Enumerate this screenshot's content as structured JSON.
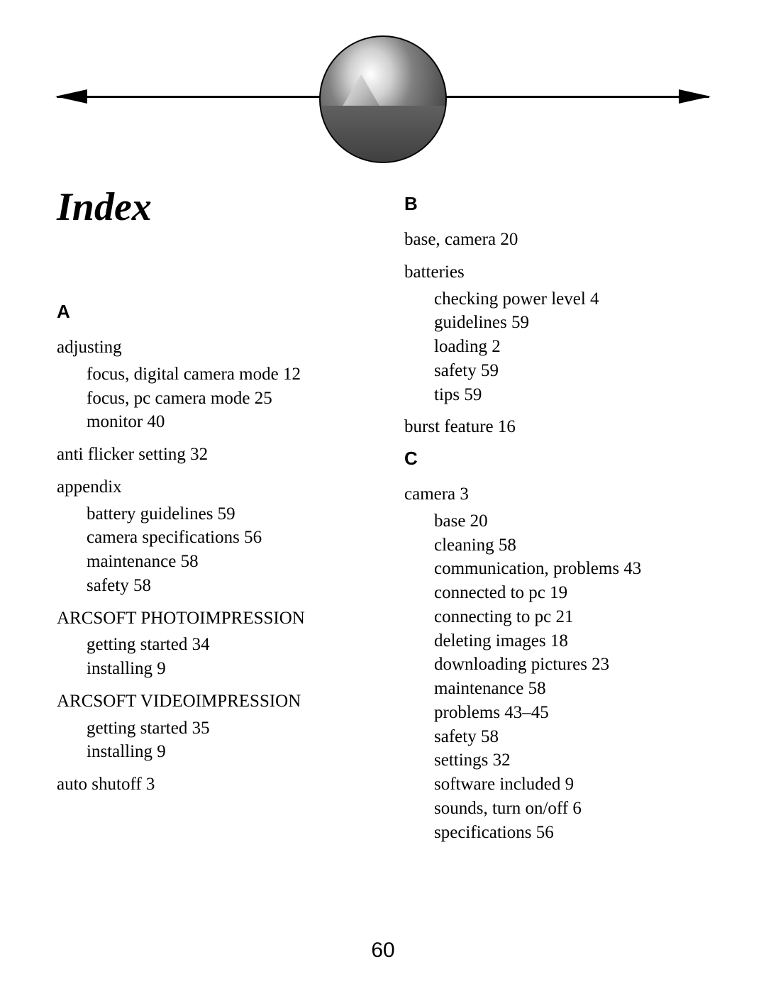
{
  "page": {
    "title": "Index",
    "page_number": "60",
    "heading_font": "cursive",
    "body_font": "Times New Roman",
    "title_fontsize": 56,
    "letter_fontsize": 26,
    "entry_fontsize": 25,
    "page_number_fontsize": 30,
    "text_color": "#000000",
    "background_color": "#ffffff"
  },
  "left_column": {
    "sections": {
      "A": {
        "letter": "A",
        "groups": [
          {
            "head": "adjusting",
            "subs": [
              "focus, digital camera mode 12",
              "focus, pc camera mode 25",
              "monitor 40"
            ]
          },
          {
            "head": "anti flicker setting 32",
            "subs": []
          },
          {
            "head": "appendix",
            "subs": [
              "battery guidelines 59",
              "camera specifications 56",
              "maintenance 58",
              "safety 58"
            ]
          },
          {
            "head": "ARCSOFT PHOTOIMPRESSION",
            "subs": [
              "getting started 34",
              "installing 9"
            ]
          },
          {
            "head": "ARCSOFT VIDEOIMPRESSION",
            "subs": [
              "getting started 35",
              "installing 9"
            ]
          },
          {
            "head": "auto shutoff 3",
            "subs": []
          }
        ]
      }
    }
  },
  "right_column": {
    "sections": {
      "B": {
        "letter": "B",
        "groups": [
          {
            "head": "base, camera 20",
            "subs": []
          },
          {
            "head": "batteries",
            "subs": [
              "checking power level 4",
              "guidelines 59",
              "loading 2",
              "safety 59",
              "tips 59"
            ]
          },
          {
            "head": "burst feature 16",
            "subs": []
          }
        ]
      },
      "C": {
        "letter": "C",
        "groups": [
          {
            "head": "camera 3",
            "subs": [
              "base 20",
              "cleaning 58",
              "communication, problems 43",
              "connected to pc 19",
              "connecting to pc 21",
              "deleting images 18",
              "downloading pictures 23",
              "maintenance 58",
              "problems 43–45",
              "safety 58",
              "settings 32",
              "software included 9",
              "sounds, turn on/off 6",
              "specifications 56"
            ]
          }
        ]
      }
    }
  }
}
